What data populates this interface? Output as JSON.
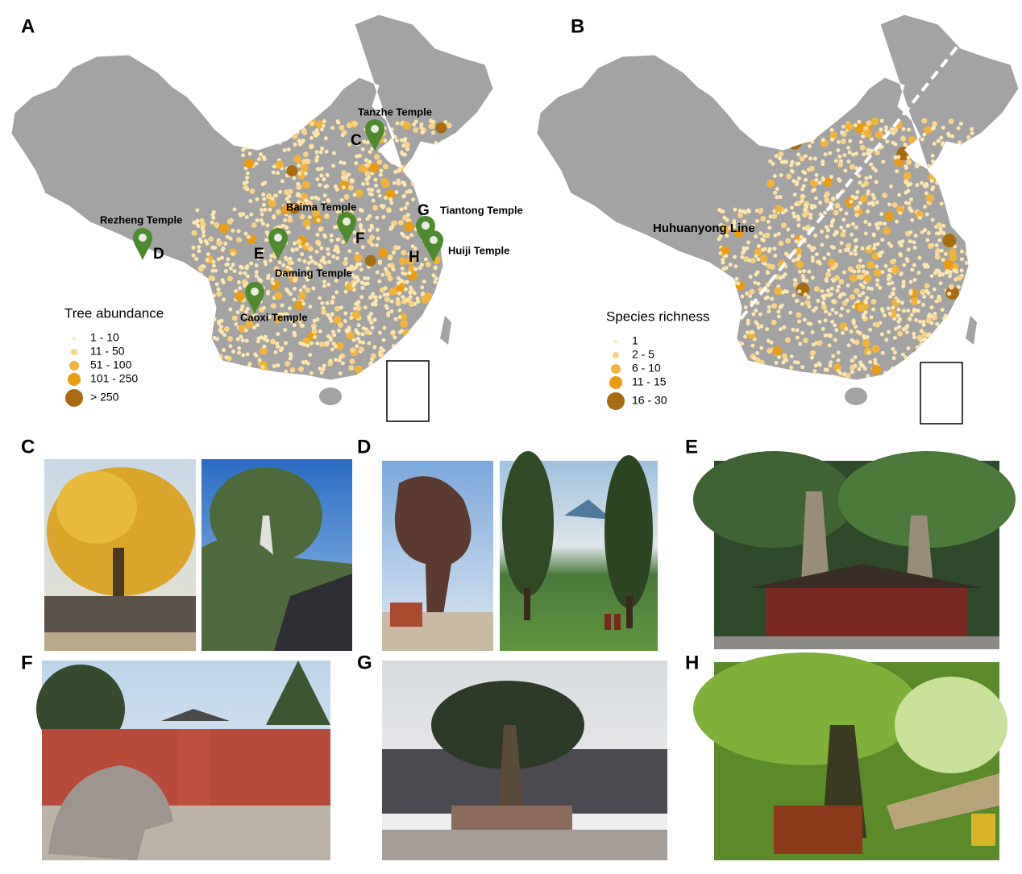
{
  "map_a": {
    "label": "A",
    "legend": {
      "title": "Tree abundance",
      "items": [
        "1 - 10",
        "11 - 50",
        "51 - 100",
        "101 - 250",
        "> 250"
      ]
    },
    "markers": [
      {
        "letter": "C",
        "temple": "Tanzhe Temple"
      },
      {
        "letter": "D",
        "temple": "Rezheng Temple"
      },
      {
        "letter": "E",
        "temple": "Daming Temple"
      },
      {
        "letter": "F",
        "temple": "Baima Temple"
      },
      {
        "letter": "G",
        "temple": "Tiantong Temple"
      },
      {
        "letter": "H",
        "temple": "Huiji Temple"
      },
      {
        "temple": "Caoxi Temple"
      }
    ]
  },
  "map_b": {
    "label": "B",
    "line_label": "Huhuanyong Line",
    "legend": {
      "title": "Species richness",
      "items": [
        "1",
        "2 - 5",
        "6 - 10",
        "11 - 15",
        "16 - 30"
      ]
    }
  },
  "photos": [
    {
      "label": "C"
    },
    {
      "label": "D"
    },
    {
      "label": "E"
    },
    {
      "label": "F"
    },
    {
      "label": "G"
    },
    {
      "label": "H"
    }
  ]
}
